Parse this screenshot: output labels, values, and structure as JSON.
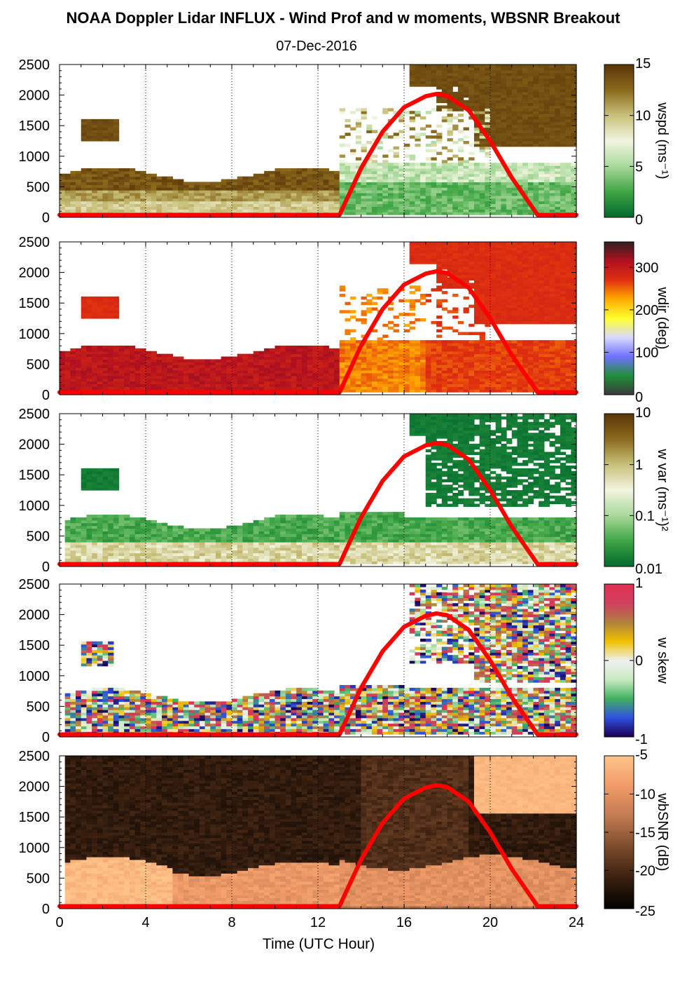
{
  "figure": {
    "title": "NOAA Doppler Lidar INFLUX - Wind Prof and w moments, WBSNR Breakout",
    "subtitle": "07-Dec-2016",
    "xlabel": "Time (UTC Hour)"
  },
  "chart_data": [
    {
      "type": "heatmap",
      "colorbar_label": "wspd (ms⁻¹)",
      "colorbar_ticks": [
        "0",
        "5",
        "10",
        "15"
      ],
      "colorbar_range": [
        0,
        15
      ],
      "colormap": [
        "#006a2e",
        "#3fa544",
        "#a8d99a",
        "#f2f5e0",
        "#c8c07a",
        "#8a6a1c",
        "#5a3508"
      ],
      "xlim": [
        0,
        24
      ],
      "ylim": [
        0,
        2500
      ],
      "x_ticks": [
        "0",
        "4",
        "8",
        "12",
        "16",
        "20",
        "24"
      ],
      "y_ticks": [
        "0",
        "500",
        "1000",
        "1500",
        "2000",
        "2500"
      ],
      "grid": "vertical dotted at 4-hour intervals",
      "overlay": {
        "name": "",
        "color": "#ff0000",
        "x": [
          0,
          13,
          14,
          15,
          16,
          17,
          17.5,
          18,
          19,
          20,
          21,
          22.2,
          24
        ],
        "y": [
          40,
          40,
          800,
          1400,
          1800,
          1980,
          2020,
          1990,
          1750,
          1250,
          650,
          40,
          40
        ]
      }
    },
    {
      "type": "heatmap",
      "colorbar_label": "wdir (deg)",
      "colorbar_ticks": [
        "0",
        "100",
        "200",
        "300"
      ],
      "colorbar_range": [
        0,
        360
      ],
      "colormap": [
        "#3a3a3a",
        "#208f3a",
        "#7070ff",
        "#dadaff",
        "#ffff30",
        "#ffaa00",
        "#e03010",
        "#b01020",
        "#302020"
      ],
      "xlim": [
        0,
        24
      ],
      "ylim": [
        0,
        2500
      ],
      "x_ticks": [
        "0",
        "4",
        "8",
        "12",
        "16",
        "20",
        "24"
      ],
      "y_ticks": [
        "0",
        "500",
        "1000",
        "1500",
        "2000",
        "2500"
      ],
      "grid": "vertical dotted at 4-hour intervals",
      "overlay": {
        "name": "",
        "color": "#ff0000",
        "x": [
          0,
          13,
          14,
          15,
          16,
          17,
          17.5,
          18,
          19,
          20,
          21,
          22.2,
          24
        ],
        "y": [
          40,
          40,
          800,
          1400,
          1800,
          1980,
          2020,
          1990,
          1750,
          1250,
          650,
          40,
          40
        ]
      }
    },
    {
      "type": "heatmap",
      "colorbar_label": "w var (ms⁻¹)²",
      "colorbar_ticks": [
        "0.01",
        "0.1",
        "1",
        "10"
      ],
      "colorbar_range": [
        0.01,
        10
      ],
      "colorbar_scale": "log",
      "colormap": [
        "#006a2e",
        "#3fa544",
        "#a8d99a",
        "#f2f5e0",
        "#c8c07a",
        "#8a6a1c",
        "#5a3508"
      ],
      "xlim": [
        0,
        24
      ],
      "ylim": [
        0,
        2500
      ],
      "x_ticks": [
        "0",
        "4",
        "8",
        "12",
        "16",
        "20",
        "24"
      ],
      "y_ticks": [
        "0",
        "500",
        "1000",
        "1500",
        "2000",
        "2500"
      ],
      "grid": "vertical dotted at 4-hour intervals",
      "overlay": {
        "name": "",
        "color": "#ff0000",
        "x": [
          0,
          13,
          14,
          15,
          16,
          17,
          17.5,
          18,
          19,
          20,
          21,
          22.2,
          24
        ],
        "y": [
          40,
          40,
          800,
          1400,
          1800,
          1980,
          2020,
          1990,
          1750,
          1250,
          650,
          40,
          40
        ]
      }
    },
    {
      "type": "heatmap",
      "colorbar_label": "w skew",
      "colorbar_ticks": [
        "-1",
        "0",
        "1"
      ],
      "colorbar_range": [
        -1,
        1
      ],
      "colormap": [
        "#1a0050",
        "#3050e0",
        "#40b060",
        "#c8eac0",
        "#f0f0f0",
        "#f0c000",
        "#b08040",
        "#d04060",
        "#e03050"
      ],
      "xlim": [
        0,
        24
      ],
      "ylim": [
        0,
        2500
      ],
      "x_ticks": [
        "0",
        "4",
        "8",
        "12",
        "16",
        "20",
        "24"
      ],
      "y_ticks": [
        "0",
        "500",
        "1000",
        "1500",
        "2000",
        "2500"
      ],
      "grid": "vertical dotted at 4-hour intervals",
      "overlay": {
        "name": "",
        "color": "#ff0000",
        "x": [
          0,
          13,
          14,
          15,
          16,
          17,
          17.5,
          18,
          19,
          20,
          21,
          22.2,
          24
        ],
        "y": [
          40,
          40,
          800,
          1400,
          1800,
          1980,
          2020,
          1990,
          1750,
          1250,
          650,
          40,
          40
        ]
      }
    },
    {
      "type": "heatmap",
      "colorbar_label": "wbSNR (dB)",
      "colorbar_ticks": [
        "-25",
        "-20",
        "-15",
        "-10",
        "-5"
      ],
      "colorbar_range": [
        -25,
        -5
      ],
      "colormap": [
        "#000000",
        "#3a2010",
        "#7a4a2a",
        "#c07a50",
        "#f09a68",
        "#ffc48a"
      ],
      "xlim": [
        0,
        24
      ],
      "ylim": [
        0,
        2500
      ],
      "x_ticks": [
        "0",
        "4",
        "8",
        "12",
        "16",
        "20",
        "24"
      ],
      "y_ticks": [
        "0",
        "500",
        "1000",
        "1500",
        "2000",
        "2500"
      ],
      "grid": "vertical dotted at 4-hour intervals",
      "overlay": {
        "name": "",
        "color": "#ff0000",
        "x": [
          0,
          13,
          14,
          15,
          16,
          17,
          17.5,
          18,
          19,
          20,
          21,
          22.2,
          24
        ],
        "y": [
          40,
          40,
          800,
          1400,
          1800,
          1980,
          2020,
          1990,
          1750,
          1250,
          650,
          40,
          40
        ]
      }
    }
  ]
}
